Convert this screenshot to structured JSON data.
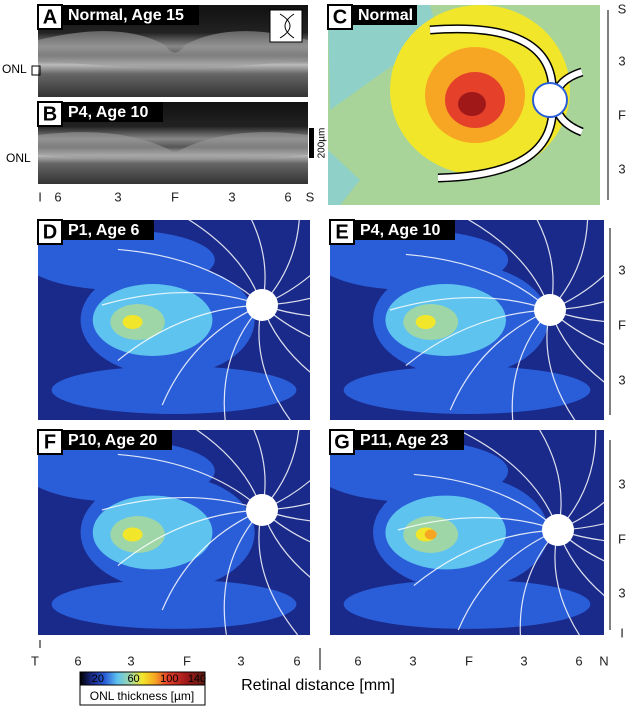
{
  "panels": [
    {
      "letter": "A",
      "title": "Normal, Age 15"
    },
    {
      "letter": "B",
      "title": "P4, Age 10"
    },
    {
      "letter": "C",
      "title": "Normal"
    },
    {
      "letter": "D",
      "title": "P1, Age 6"
    },
    {
      "letter": "E",
      "title": "P4, Age 10"
    },
    {
      "letter": "F",
      "title": "P10, Age 20"
    },
    {
      "letter": "G",
      "title": "P11, Age 23"
    }
  ],
  "annotations": {
    "onl_a": "ONL",
    "onl_b": "ONL",
    "scale_bar": "200µm"
  },
  "axes": {
    "b_x": [
      "I",
      "6",
      "3",
      "F",
      "3",
      "6",
      "S"
    ],
    "c_y": [
      "S",
      "3",
      "F",
      "3"
    ],
    "e_y": [
      "3",
      "F",
      "3"
    ],
    "g_y": [
      "3",
      "F",
      "3",
      "I"
    ],
    "bottom_left": [
      "T",
      "6",
      "3",
      "F",
      "3",
      "6"
    ],
    "bottom_right": [
      "6",
      "3",
      "F",
      "3",
      "6",
      "N"
    ],
    "x_label": "Retinal distance [mm]"
  },
  "colorbar": {
    "ticks": [
      20,
      60,
      100,
      140
    ],
    "label": "ONL thickness [µm]"
  }
}
